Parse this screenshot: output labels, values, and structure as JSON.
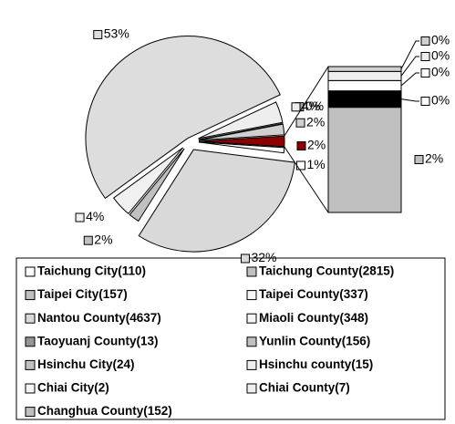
{
  "chart_data": {
    "type": "bar-of-pie",
    "pie": {
      "values": [
        0,
        2,
        2,
        1,
        32,
        2,
        4,
        53,
        4
      ],
      "value_labels": [
        "0%",
        "2%",
        "2%",
        "1%",
        "32%",
        "2%",
        "4%",
        "53%",
        "4%"
      ],
      "colors": [
        "#a6a6a6",
        "#d0d0d0",
        "#8b0000",
        "#ffffff",
        "#d9d9d9",
        "#c0c0c0",
        "#f0f0f0",
        "#dddddd",
        "#eeeeee"
      ]
    },
    "bar": {
      "values": [
        1.73,
        0.27,
        0.17,
        0.15,
        0.08
      ],
      "value_labels": [
        "2%",
        "0%",
        "0%",
        "0%",
        "0%"
      ],
      "colors": [
        "#c0c0c0",
        "#000000",
        "#ffffff",
        "#eeeeee",
        "#d0d0d0"
      ]
    },
    "legend": {
      "entries": [
        "Taichung City(110)",
        "Taichung County(2815)",
        "Taipei City(157)",
        "Taipei County(337)",
        "Nantou County(4637)",
        "Miaoli County(348)",
        "Taoyuanj County(13)",
        "Yunlin County(156)",
        "Hsinchu City(24)",
        "Hsinchu county(15)",
        "Chiai City(2)",
        "Chiai County(7)",
        "Changhua County(152)"
      ],
      "colors": [
        "#ffffff",
        "#c0c0c0",
        "#c0c0c0",
        "#f5f5f5",
        "#d9d9d9",
        "#f5f5f5",
        "#969696",
        "#c0c0c0",
        "#c0c0c0",
        "#eeeeee",
        "#f5f5f5",
        "#eeeeee",
        "#c0c0c0"
      ]
    }
  }
}
